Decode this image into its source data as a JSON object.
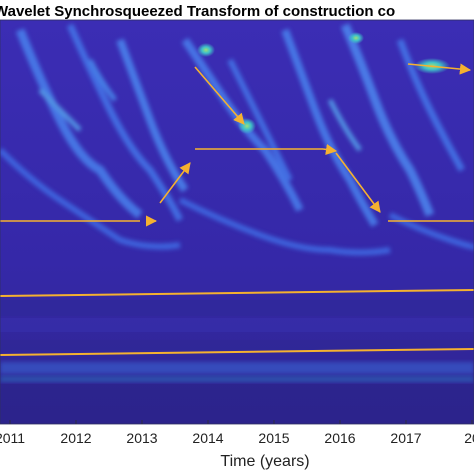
{
  "chart_data": {
    "type": "heatmap",
    "title": "Wavelet Synchrosqueezed Transform of construction co",
    "xlabel": "Time (years)",
    "ylabel": "",
    "x_ticks": [
      "2011",
      "2012",
      "2013",
      "2014",
      "2015",
      "2016",
      "2017",
      "20"
    ],
    "xlim": [
      2010.6,
      2018.5
    ],
    "colormap": "parula",
    "colors": {
      "background": "#3a2fb0",
      "ridge": "#3f6fe8",
      "ridge_bright": "#55b8e6",
      "hotspot": "#7ee08a",
      "annotation": "#f5b130"
    },
    "annotation_segments": [
      {
        "x": [
          2010.6,
          2013.1
        ]
      },
      {
        "x": [
          2013.3,
          2013.9
        ],
        "arrow": true
      },
      {
        "x": [
          2013.9,
          2015.8
        ]
      },
      {
        "x": [
          2015.8,
          2016.6
        ],
        "arrow": true
      },
      {
        "x": [
          2016.7,
          2018.5
        ]
      },
      {
        "x": [
          2014.0,
          2014.7
        ],
        "arrow": true
      },
      {
        "x": [
          2017.9,
          2018.5
        ],
        "arrow": true
      }
    ]
  }
}
